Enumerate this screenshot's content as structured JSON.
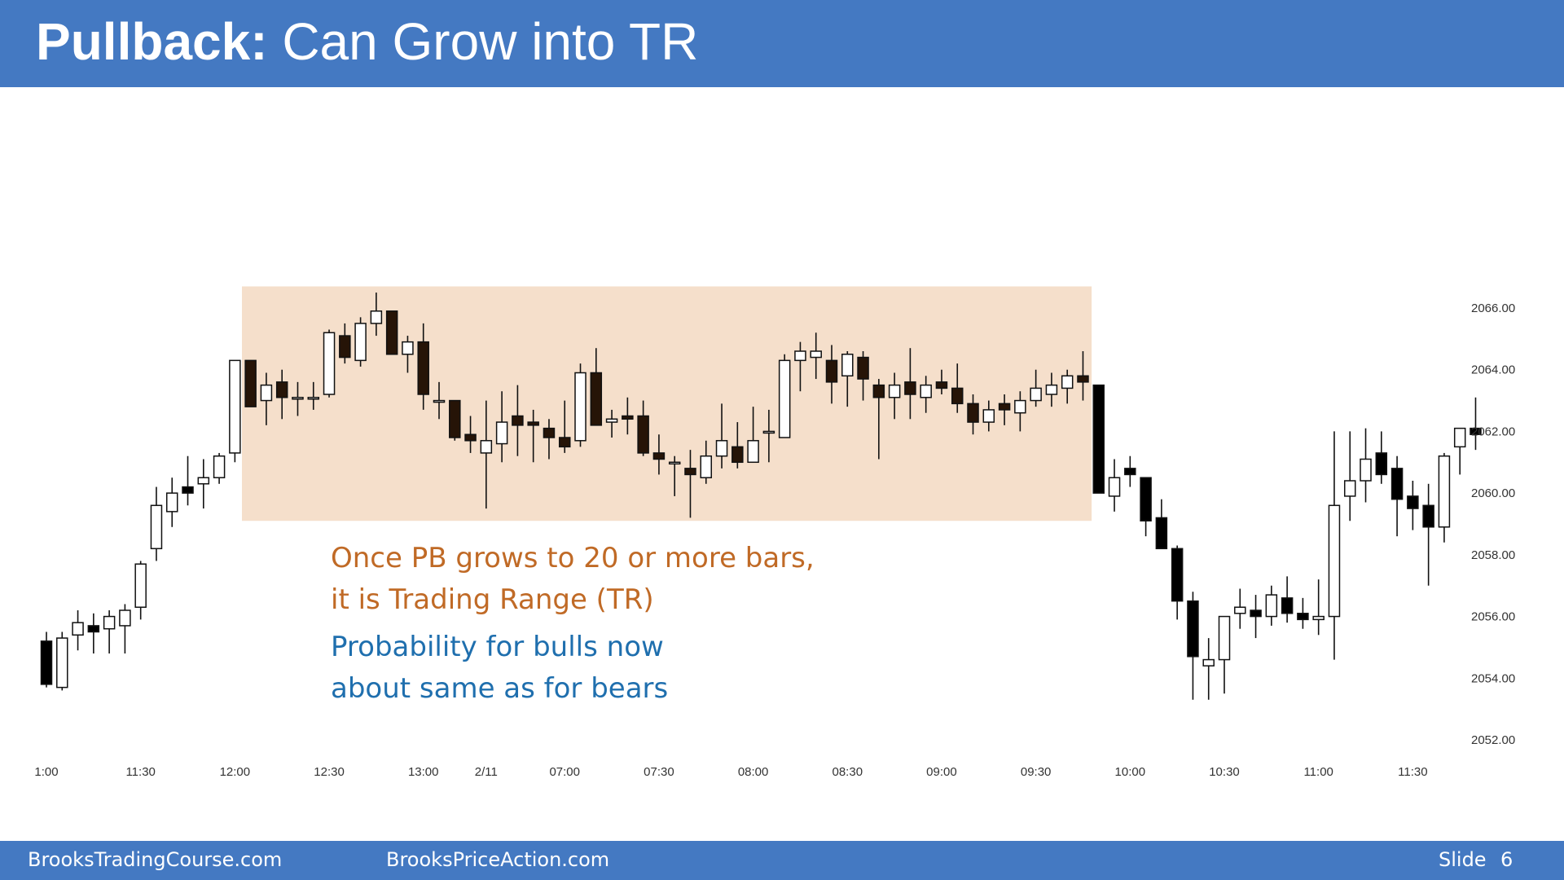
{
  "slide": {
    "title_bold": "Pullback:",
    "title_rest": "Can Grow into TR",
    "annotation_orange_1": "Once PB grows to 20 or more bars,",
    "annotation_orange_2": "it is Trading Range (TR)",
    "annotation_blue_1": "Probability for bulls now",
    "annotation_blue_2": "about same as for bears",
    "footer_left": "BrooksTradingCourse.com",
    "footer_middle": "BrooksPriceAction.com",
    "footer_slide_label": "Slide",
    "footer_slide_number": "6"
  },
  "colors": {
    "header": "#4479C2",
    "range_box": "#F5DFCB",
    "bear_candle": "#000000",
    "bear_candle_in_range": "#261407",
    "bull_candle": "#ffffff",
    "orange_text": "#C06A26",
    "blue_text": "#1F6FAE"
  },
  "chart_data": {
    "type": "candlestick",
    "y_ticks": [
      "2052.00",
      "2054.00",
      "2056.00",
      "2058.00",
      "2060.00",
      "2062.00",
      "2064.00",
      "2066.00"
    ],
    "ylim": [
      2052,
      2066
    ],
    "x_ticks": [
      {
        "label": "1:00",
        "bar": 0
      },
      {
        "label": "11:30",
        "bar": 6
      },
      {
        "label": "12:00",
        "bar": 12
      },
      {
        "label": "12:30",
        "bar": 18
      },
      {
        "label": "13:00",
        "bar": 24
      },
      {
        "label": "2/11",
        "bar": 28
      },
      {
        "label": "07:00",
        "bar": 33
      },
      {
        "label": "07:30",
        "bar": 39
      },
      {
        "label": "08:00",
        "bar": 45
      },
      {
        "label": "08:30",
        "bar": 51
      },
      {
        "label": "09:00",
        "bar": 57
      },
      {
        "label": "09:30",
        "bar": 63
      },
      {
        "label": "10:00",
        "bar": 69
      },
      {
        "label": "10:30",
        "bar": 75
      },
      {
        "label": "11:00",
        "bar": 81
      },
      {
        "label": "11:30",
        "bar": 87
      }
    ],
    "range_box": {
      "start_bar": 13,
      "end_bar": 66,
      "low": 2059.1,
      "high": 2066.7
    },
    "candles": [
      {
        "o": 2055.2,
        "h": 2055.5,
        "l": 2053.7,
        "c": 2053.8
      },
      {
        "o": 2053.7,
        "h": 2055.5,
        "l": 2053.6,
        "c": 2055.3
      },
      {
        "o": 2055.4,
        "h": 2056.2,
        "l": 2054.9,
        "c": 2055.8
      },
      {
        "o": 2055.7,
        "h": 2056.1,
        "l": 2054.8,
        "c": 2055.5
      },
      {
        "o": 2055.6,
        "h": 2056.2,
        "l": 2054.8,
        "c": 2056.0
      },
      {
        "o": 2055.7,
        "h": 2056.4,
        "l": 2054.8,
        "c": 2056.2
      },
      {
        "o": 2056.3,
        "h": 2057.8,
        "l": 2055.9,
        "c": 2057.7
      },
      {
        "o": 2058.2,
        "h": 2060.2,
        "l": 2057.8,
        "c": 2059.6
      },
      {
        "o": 2059.4,
        "h": 2060.5,
        "l": 2058.9,
        "c": 2060.0
      },
      {
        "o": 2060.2,
        "h": 2061.2,
        "l": 2059.6,
        "c": 2060.0
      },
      {
        "o": 2060.3,
        "h": 2061.1,
        "l": 2059.5,
        "c": 2060.5
      },
      {
        "o": 2060.5,
        "h": 2061.3,
        "l": 2060.3,
        "c": 2061.2
      },
      {
        "o": 2061.3,
        "h": 2064.3,
        "l": 2061.0,
        "c": 2064.3
      },
      {
        "o": 2064.3,
        "h": 2064.3,
        "l": 2062.8,
        "c": 2062.8
      },
      {
        "o": 2063.0,
        "h": 2063.9,
        "l": 2062.2,
        "c": 2063.5
      },
      {
        "o": 2063.6,
        "h": 2064.0,
        "l": 2062.4,
        "c": 2063.1
      },
      {
        "o": 2063.1,
        "h": 2063.6,
        "l": 2062.5,
        "c": 2063.1
      },
      {
        "o": 2063.1,
        "h": 2063.6,
        "l": 2062.7,
        "c": 2063.1
      },
      {
        "o": 2063.2,
        "h": 2065.3,
        "l": 2063.1,
        "c": 2065.2
      },
      {
        "o": 2065.1,
        "h": 2065.5,
        "l": 2064.2,
        "c": 2064.4
      },
      {
        "o": 2064.3,
        "h": 2065.7,
        "l": 2064.1,
        "c": 2065.5
      },
      {
        "o": 2065.5,
        "h": 2066.5,
        "l": 2065.1,
        "c": 2065.9
      },
      {
        "o": 2065.9,
        "h": 2065.9,
        "l": 2064.5,
        "c": 2064.5
      },
      {
        "o": 2064.5,
        "h": 2065.1,
        "l": 2063.9,
        "c": 2064.9
      },
      {
        "o": 2064.9,
        "h": 2065.5,
        "l": 2062.7,
        "c": 2063.2
      },
      {
        "o": 2063.0,
        "h": 2063.6,
        "l": 2062.4,
        "c": 2063.0
      },
      {
        "o": 2063.0,
        "h": 2063.0,
        "l": 2061.7,
        "c": 2061.8
      },
      {
        "o": 2061.9,
        "h": 2062.5,
        "l": 2061.3,
        "c": 2061.7
      },
      {
        "o": 2061.3,
        "h": 2063.0,
        "l": 2059.5,
        "c": 2061.7
      },
      {
        "o": 2061.6,
        "h": 2063.3,
        "l": 2061.0,
        "c": 2062.3
      },
      {
        "o": 2062.5,
        "h": 2063.5,
        "l": 2061.2,
        "c": 2062.2
      },
      {
        "o": 2062.3,
        "h": 2062.7,
        "l": 2061.0,
        "c": 2062.2
      },
      {
        "o": 2062.1,
        "h": 2062.4,
        "l": 2061.1,
        "c": 2061.8
      },
      {
        "o": 2061.8,
        "h": 2063.0,
        "l": 2061.3,
        "c": 2061.5
      },
      {
        "o": 2061.7,
        "h": 2064.2,
        "l": 2061.5,
        "c": 2063.9
      },
      {
        "o": 2063.9,
        "h": 2064.7,
        "l": 2062.2,
        "c": 2062.2
      },
      {
        "o": 2062.3,
        "h": 2062.7,
        "l": 2061.8,
        "c": 2062.4
      },
      {
        "o": 2062.5,
        "h": 2063.1,
        "l": 2061.9,
        "c": 2062.4
      },
      {
        "o": 2062.5,
        "h": 2063.0,
        "l": 2061.2,
        "c": 2061.3
      },
      {
        "o": 2061.3,
        "h": 2061.9,
        "l": 2060.6,
        "c": 2061.1
      },
      {
        "o": 2061.0,
        "h": 2061.2,
        "l": 2059.9,
        "c": 2061.0
      },
      {
        "o": 2060.8,
        "h": 2061.4,
        "l": 2059.2,
        "c": 2060.6
      },
      {
        "o": 2060.5,
        "h": 2061.7,
        "l": 2060.3,
        "c": 2061.2
      },
      {
        "o": 2061.2,
        "h": 2062.9,
        "l": 2060.8,
        "c": 2061.7
      },
      {
        "o": 2061.5,
        "h": 2062.3,
        "l": 2060.8,
        "c": 2061.0
      },
      {
        "o": 2061.0,
        "h": 2062.8,
        "l": 2061.0,
        "c": 2061.7
      },
      {
        "o": 2062.0,
        "h": 2062.7,
        "l": 2061.0,
        "c": 2062.0
      },
      {
        "o": 2061.8,
        "h": 2064.5,
        "l": 2061.8,
        "c": 2064.3
      },
      {
        "o": 2064.3,
        "h": 2064.9,
        "l": 2063.3,
        "c": 2064.6
      },
      {
        "o": 2064.4,
        "h": 2065.2,
        "l": 2063.7,
        "c": 2064.6
      },
      {
        "o": 2064.3,
        "h": 2064.8,
        "l": 2062.9,
        "c": 2063.6
      },
      {
        "o": 2063.8,
        "h": 2064.6,
        "l": 2062.8,
        "c": 2064.5
      },
      {
        "o": 2064.4,
        "h": 2064.6,
        "l": 2063.0,
        "c": 2063.7
      },
      {
        "o": 2063.5,
        "h": 2063.7,
        "l": 2061.1,
        "c": 2063.1
      },
      {
        "o": 2063.1,
        "h": 2063.9,
        "l": 2062.4,
        "c": 2063.5
      },
      {
        "o": 2063.6,
        "h": 2064.7,
        "l": 2062.4,
        "c": 2063.2
      },
      {
        "o": 2063.1,
        "h": 2063.8,
        "l": 2062.6,
        "c": 2063.5
      },
      {
        "o": 2063.6,
        "h": 2064.0,
        "l": 2063.2,
        "c": 2063.4
      },
      {
        "o": 2063.4,
        "h": 2064.2,
        "l": 2062.6,
        "c": 2062.9
      },
      {
        "o": 2062.9,
        "h": 2063.2,
        "l": 2061.9,
        "c": 2062.3
      },
      {
        "o": 2062.3,
        "h": 2063.0,
        "l": 2062.0,
        "c": 2062.7
      },
      {
        "o": 2062.9,
        "h": 2063.2,
        "l": 2062.2,
        "c": 2062.7
      },
      {
        "o": 2062.6,
        "h": 2063.3,
        "l": 2062.0,
        "c": 2063.0
      },
      {
        "o": 2063.0,
        "h": 2064.0,
        "l": 2062.8,
        "c": 2063.4
      },
      {
        "o": 2063.2,
        "h": 2063.9,
        "l": 2062.8,
        "c": 2063.5
      },
      {
        "o": 2063.4,
        "h": 2064.0,
        "l": 2062.9,
        "c": 2063.8
      },
      {
        "o": 2063.8,
        "h": 2064.6,
        "l": 2063.0,
        "c": 2063.6
      },
      {
        "o": 2063.5,
        "h": 2063.5,
        "l": 2060.0,
        "c": 2060.0
      },
      {
        "o": 2059.9,
        "h": 2061.1,
        "l": 2059.4,
        "c": 2060.5
      },
      {
        "o": 2060.8,
        "h": 2061.2,
        "l": 2060.2,
        "c": 2060.6
      },
      {
        "o": 2060.5,
        "h": 2060.5,
        "l": 2058.6,
        "c": 2059.1
      },
      {
        "o": 2059.2,
        "h": 2059.8,
        "l": 2058.2,
        "c": 2058.2
      },
      {
        "o": 2058.2,
        "h": 2058.3,
        "l": 2055.9,
        "c": 2056.5
      },
      {
        "o": 2056.5,
        "h": 2056.8,
        "l": 2053.3,
        "c": 2054.7
      },
      {
        "o": 2054.4,
        "h": 2055.3,
        "l": 2053.3,
        "c": 2054.6
      },
      {
        "o": 2054.6,
        "h": 2056.0,
        "l": 2053.5,
        "c": 2056.0
      },
      {
        "o": 2056.1,
        "h": 2056.9,
        "l": 2055.6,
        "c": 2056.3
      },
      {
        "o": 2056.2,
        "h": 2056.7,
        "l": 2055.3,
        "c": 2056.0
      },
      {
        "o": 2056.0,
        "h": 2057.0,
        "l": 2055.7,
        "c": 2056.7
      },
      {
        "o": 2056.6,
        "h": 2057.3,
        "l": 2055.8,
        "c": 2056.1
      },
      {
        "o": 2056.1,
        "h": 2056.6,
        "l": 2055.6,
        "c": 2055.9
      },
      {
        "o": 2055.9,
        "h": 2057.2,
        "l": 2055.4,
        "c": 2056.0
      },
      {
        "o": 2056.0,
        "h": 2062.0,
        "l": 2054.6,
        "c": 2059.6
      },
      {
        "o": 2059.9,
        "h": 2062.0,
        "l": 2059.1,
        "c": 2060.4
      },
      {
        "o": 2060.4,
        "h": 2062.1,
        "l": 2059.7,
        "c": 2061.1
      },
      {
        "o": 2061.3,
        "h": 2062.0,
        "l": 2060.3,
        "c": 2060.6
      },
      {
        "o": 2060.8,
        "h": 2061.2,
        "l": 2058.6,
        "c": 2059.8
      },
      {
        "o": 2059.9,
        "h": 2060.4,
        "l": 2058.8,
        "c": 2059.5
      },
      {
        "o": 2059.6,
        "h": 2060.3,
        "l": 2057.0,
        "c": 2058.9
      },
      {
        "o": 2058.9,
        "h": 2061.3,
        "l": 2058.4,
        "c": 2061.2
      },
      {
        "o": 2061.5,
        "h": 2062.1,
        "l": 2060.6,
        "c": 2062.1
      },
      {
        "o": 2062.1,
        "h": 2063.1,
        "l": 2061.4,
        "c": 2061.9
      }
    ]
  }
}
